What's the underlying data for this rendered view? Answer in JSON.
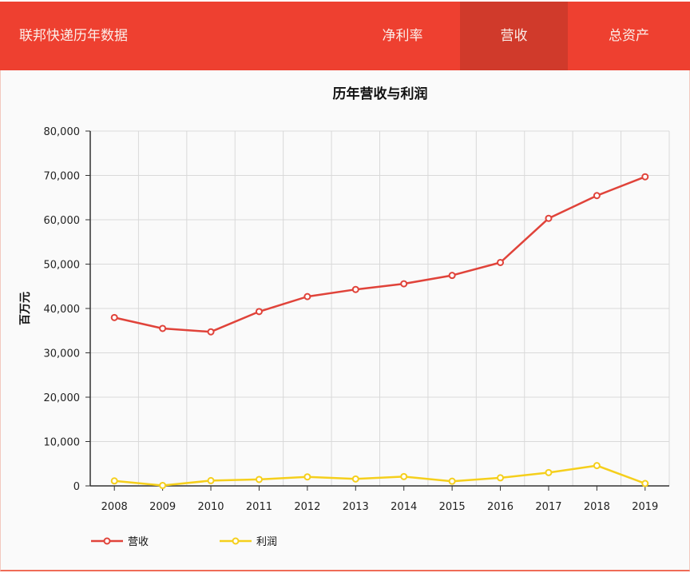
{
  "header": {
    "title": "联邦快递历年数据",
    "tabs": [
      {
        "label": "净利率",
        "active": false
      },
      {
        "label": "营收",
        "active": true
      },
      {
        "label": "总资产",
        "active": false
      }
    ]
  },
  "colors": {
    "header_bg": "#ee4030",
    "active_tab_bg": "#d03a2b",
    "revenue": "#e0433a",
    "profit": "#f5cf1c"
  },
  "chart_data": {
    "type": "line",
    "title": "历年营收与利润",
    "xlabel": "",
    "ylabel": "百万元",
    "ylim": [
      0,
      80000
    ],
    "yticks": [
      "0",
      "10,000",
      "20,000",
      "30,000",
      "40,000",
      "50,000",
      "60,000",
      "70,000",
      "80,000"
    ],
    "grid": true,
    "legend_position": "bottom-left",
    "categories": [
      "2008",
      "2009",
      "2010",
      "2011",
      "2012",
      "2013",
      "2014",
      "2015",
      "2016",
      "2017",
      "2018",
      "2019"
    ],
    "series": [
      {
        "name": "营收",
        "values": [
          37953,
          35497,
          34734,
          39304,
          42680,
          44287,
          45567,
          47453,
          50365,
          60319,
          65450,
          69693
        ]
      },
      {
        "name": "利润",
        "values": [
          1125,
          98,
          1184,
          1452,
          2032,
          1561,
          2097,
          1050,
          1820,
          3000,
          4572,
          540
        ]
      }
    ]
  }
}
